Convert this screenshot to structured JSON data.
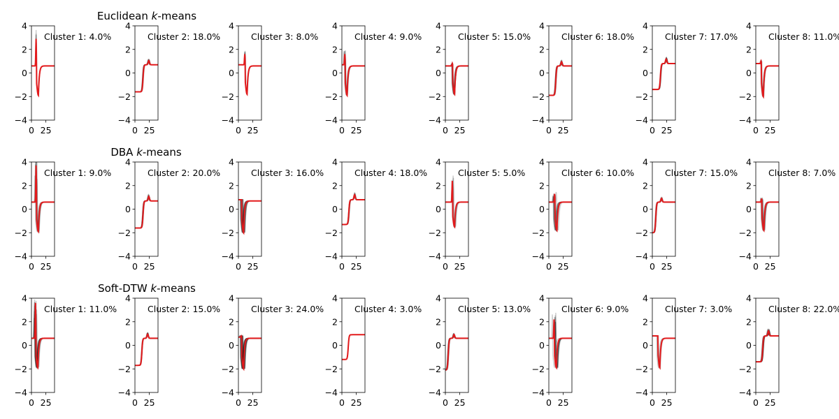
{
  "figure": {
    "yticks": [
      4,
      2,
      0,
      -2,
      -4
    ],
    "xticks": [
      0,
      25
    ],
    "ylim": [
      -4,
      4
    ],
    "xlim": [
      0,
      40
    ],
    "grid": false,
    "colors": {
      "member": "#000000",
      "center": "#e31a1c",
      "axis": "#000000"
    }
  },
  "chart_data": [
    {
      "type": "line",
      "title_parts": [
        "Euclidean ",
        "k",
        "-means"
      ],
      "panels": [
        {
          "label": "Cluster 1: 4.0%",
          "shape": "spike_dip",
          "t0": 8,
          "pre": 0.6,
          "spike": 2.9,
          "dip": -1.9,
          "post": 0.6,
          "spread": 0.6,
          "members": 4
        },
        {
          "label": "Cluster 2: 18.0%",
          "shape": "step_up",
          "t0": 14,
          "pre": -1.6,
          "post": 0.7,
          "bump": 1.0,
          "spread": 1.0,
          "members": 12
        },
        {
          "label": "Cluster 3: 8.0%",
          "shape": "spike_dip",
          "t0": 11,
          "pre": 0.7,
          "spike": 1.6,
          "dip": -1.8,
          "post": 0.6,
          "spread": 1.0,
          "members": 6
        },
        {
          "label": "Cluster 4: 9.0%",
          "shape": "spike_dip",
          "t0": 5,
          "pre": 0.7,
          "spike": 1.6,
          "dip": -1.9,
          "post": 0.6,
          "spread": 1.2,
          "members": 8
        },
        {
          "label": "Cluster 5: 15.0%",
          "shape": "step_spike_dip",
          "t0": 12,
          "pre": 0.6,
          "spike": 0.8,
          "dip": -1.8,
          "post": 0.6,
          "spread": 1.6,
          "members": 12
        },
        {
          "label": "Cluster 6: 18.0%",
          "shape": "step_up",
          "t0": 12,
          "pre": -1.9,
          "post": 0.6,
          "bump": 1.0,
          "spread": 1.2,
          "members": 14
        },
        {
          "label": "Cluster 7: 17.0%",
          "shape": "step_up",
          "t0": 14,
          "pre": -1.4,
          "post": 0.8,
          "bump": 1.1,
          "spread": 1.0,
          "members": 12
        },
        {
          "label": "Cluster 8: 11.0%",
          "shape": "spike_dip",
          "t0": 9,
          "pre": 0.8,
          "spike": 1.0,
          "dip": -2.0,
          "post": 0.6,
          "spread": 1.4,
          "members": 9
        }
      ]
    },
    {
      "type": "line",
      "title_parts": [
        "DBA ",
        "k",
        "-means"
      ],
      "panels": [
        {
          "label": "Cluster 1: 9.0%",
          "shape": "spike_dip",
          "t0": 8,
          "pre": 0.6,
          "spike": 3.7,
          "dip": -1.9,
          "post": 0.6,
          "spread": 2.2,
          "members": 9
        },
        {
          "label": "Cluster 2: 20.0%",
          "shape": "step_up",
          "t0": 14,
          "pre": -1.6,
          "post": 0.7,
          "bump": 1.1,
          "spread": 1.0,
          "members": 14
        },
        {
          "label": "Cluster 3: 16.0%",
          "shape": "spike_dip",
          "t0": 5,
          "pre": 0.8,
          "spike": 0.8,
          "dip": -2.0,
          "post": 0.7,
          "spread": 2.8,
          "members": 12
        },
        {
          "label": "Cluster 4: 18.0%",
          "shape": "step_up",
          "t0": 12,
          "pre": -1.3,
          "post": 0.8,
          "bump": 1.2,
          "spread": 1.0,
          "members": 12
        },
        {
          "label": "Cluster 5: 5.0%",
          "shape": "spike_dip",
          "t0": 12,
          "pre": 0.6,
          "spike": 2.4,
          "dip": -1.5,
          "post": 0.6,
          "spread": 2.0,
          "members": 5
        },
        {
          "label": "Cluster 6: 10.0%",
          "shape": "spike_dip",
          "t0": 10,
          "pre": 0.6,
          "spike": 1.3,
          "dip": -1.8,
          "post": 0.6,
          "spread": 3.0,
          "members": 9
        },
        {
          "label": "Cluster 7: 15.0%",
          "shape": "step_up",
          "t0": 6,
          "pre": -2.0,
          "post": 0.6,
          "bump": 0.9,
          "spread": 1.0,
          "members": 12
        },
        {
          "label": "Cluster 8: 7.0%",
          "shape": "spike_dip",
          "t0": 10,
          "pre": 0.6,
          "spike": 0.9,
          "dip": -1.8,
          "post": 0.6,
          "spread": 2.6,
          "members": 7
        }
      ]
    },
    {
      "type": "line",
      "title_parts": [
        "Soft-DTW ",
        "k",
        "-means"
      ],
      "panels": [
        {
          "label": "Cluster 1: 11.0%",
          "shape": "spike_dip",
          "t0": 7,
          "pre": 0.6,
          "spike": 3.6,
          "dip": -1.9,
          "post": 0.6,
          "spread": 2.6,
          "members": 10
        },
        {
          "label": "Cluster 2: 15.0%",
          "shape": "step_up",
          "t0": 12,
          "pre": -1.7,
          "post": 0.6,
          "bump": 1.0,
          "spread": 0.8,
          "members": 12
        },
        {
          "label": "Cluster 3: 24.0%",
          "shape": "spike_dip",
          "t0": 5,
          "pre": 0.7,
          "spike": 0.8,
          "dip": -2.0,
          "post": 0.6,
          "spread": 2.6,
          "members": 18
        },
        {
          "label": "Cluster 4: 3.0%",
          "shape": "step_up",
          "t0": 11,
          "pre": -1.2,
          "post": 0.9,
          "bump": 0.0,
          "spread": 0.3,
          "members": 3
        },
        {
          "label": "Cluster 5: 13.0%",
          "shape": "step_up",
          "t0": 5,
          "pre": -2.1,
          "post": 0.6,
          "bump": 0.9,
          "spread": 1.2,
          "members": 12
        },
        {
          "label": "Cluster 6: 9.0%",
          "shape": "spike_dip",
          "t0": 9,
          "pre": 0.6,
          "spike": 2.2,
          "dip": -1.9,
          "post": 0.6,
          "spread": 3.2,
          "members": 9
        },
        {
          "label": "Cluster 7: 3.0%",
          "shape": "dip_only",
          "t0": 9,
          "pre": 0.8,
          "spike": 0.8,
          "dip": -1.9,
          "post": 0.6,
          "spread": 3.0,
          "members": 3
        },
        {
          "label": "Cluster 8: 22.0%",
          "shape": "step_up",
          "t0": 12,
          "pre": -1.4,
          "post": 0.8,
          "bump": 1.2,
          "spread": 1.2,
          "members": 16
        }
      ]
    }
  ]
}
